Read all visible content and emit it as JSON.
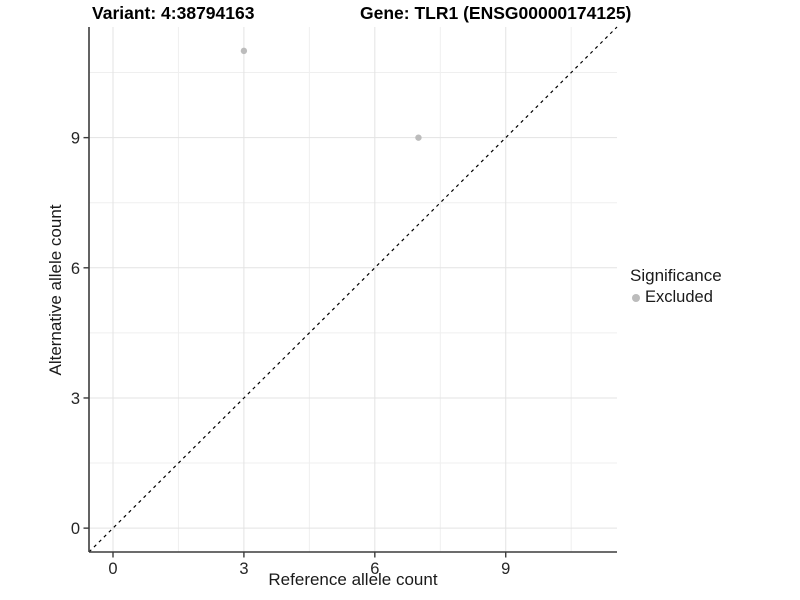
{
  "chart_data": {
    "type": "scatter",
    "titles": {
      "variant": "Variant: 4:38794163",
      "gene": "Gene: TLR1 (ENSG00000174125)"
    },
    "xlabel": "Reference allele count",
    "ylabel": "Alternative allele count",
    "xlim": [
      -0.55,
      11.55
    ],
    "ylim": [
      -0.55,
      11.55
    ],
    "xticks": [
      0,
      3,
      6,
      9
    ],
    "yticks": [
      0,
      3,
      6,
      9
    ],
    "minor_gridlines": [
      1.5,
      4.5,
      7.5,
      10.5
    ],
    "grid": true,
    "series": [
      {
        "name": "Excluded",
        "color": "#bcbcbc",
        "points": [
          {
            "x": 3,
            "y": 11
          },
          {
            "x": 7,
            "y": 9
          }
        ]
      }
    ],
    "identity_line": {
      "from": [
        -0.55,
        -0.55
      ],
      "to": [
        11.55,
        11.55
      ],
      "style": "dashed",
      "color": "#000000"
    },
    "legend": {
      "title": "Significance",
      "position": "right",
      "items": [
        {
          "label": "Excluded",
          "color": "#bcbcbc"
        }
      ]
    }
  },
  "colors": {
    "background": "#ffffff",
    "grid_major": "#e3e3e3",
    "grid_minor": "#efefef",
    "axis_line": "#3c3c3c",
    "tick_text": "#262626",
    "point": "#bcbcbc"
  }
}
